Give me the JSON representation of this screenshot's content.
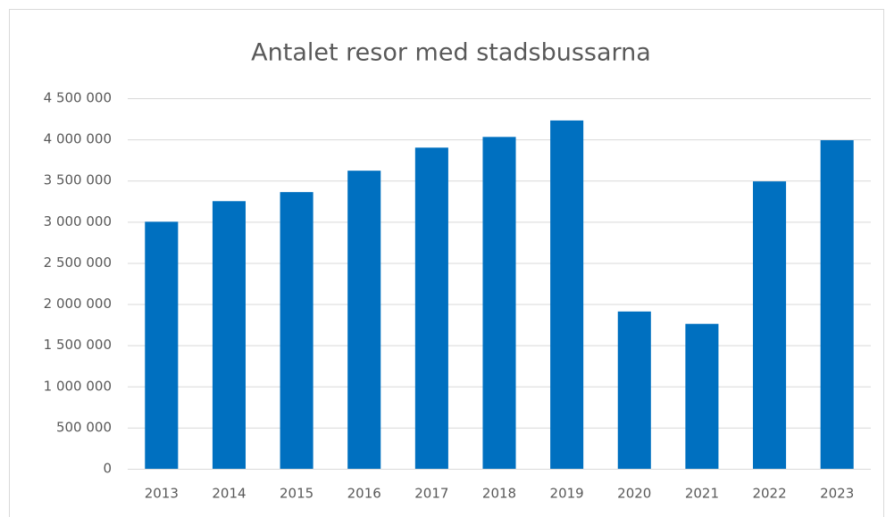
{
  "chart_data": {
    "type": "bar",
    "title": "Antalet resor med stadsbussarna",
    "categories": [
      "2013",
      "2014",
      "2015",
      "2016",
      "2017",
      "2018",
      "2019",
      "2020",
      "2021",
      "2022",
      "2023"
    ],
    "values": [
      3000000,
      3250000,
      3360000,
      3620000,
      3900000,
      4030000,
      4230000,
      1910000,
      1760000,
      3490000,
      3990000
    ],
    "color": "#0070c0",
    "ylim": [
      0,
      4500000
    ],
    "yticks": [
      0,
      {
        "value": 500000,
        "label": "500 000"
      },
      {
        "value": 1000000,
        "label": "1 000 000"
      },
      {
        "value": 1500000,
        "label": "1 500 000"
      },
      {
        "value": 2000000,
        "label": "2 000 000"
      },
      {
        "value": 2500000,
        "label": "2 500 000"
      },
      {
        "value": 3000000,
        "label": "3 000 000"
      },
      {
        "value": 3500000,
        "label": "3 500 000"
      },
      {
        "value": 4000000,
        "label": "4 000 000"
      },
      {
        "value": 4500000,
        "label": "4 500 000"
      }
    ],
    "grid": true
  }
}
